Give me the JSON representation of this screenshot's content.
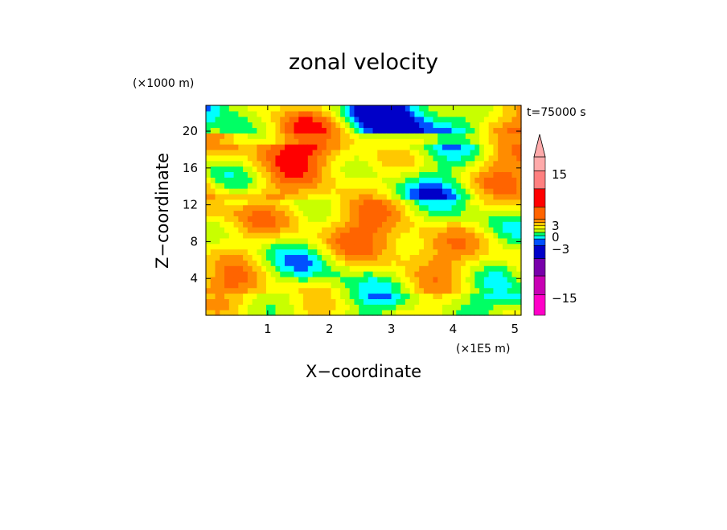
{
  "chart_data": {
    "type": "heatmap",
    "title": "zonal velocity",
    "xlabel": "X−coordinate",
    "ylabel": "Z−coordinate",
    "x_unit": "(×1E5 m)",
    "y_unit": "(×1000 m)",
    "time_label": "t=75000 s",
    "xlim": [
      0,
      5.1
    ],
    "ylim": [
      0,
      22.8
    ],
    "x_ticks": [
      "1",
      "2",
      "3",
      "4",
      "5"
    ],
    "x_tick_values": [
      1,
      2,
      3,
      4,
      5
    ],
    "y_ticks": [
      "4",
      "8",
      "12",
      "16",
      "20"
    ],
    "y_tick_values": [
      4,
      8,
      12,
      16,
      20
    ],
    "grid": false,
    "colorbar": {
      "placement": "right",
      "tick_labels": [
        "15",
        "3",
        "0",
        "−3",
        "−15"
      ],
      "tick_values": [
        15,
        3,
        0,
        -3,
        -15
      ],
      "levels": [
        {
          "color": "#ff00c8"
        },
        {
          "color": "#c800b4"
        },
        {
          "color": "#7800aa"
        },
        {
          "color": "#0000c8"
        },
        {
          "color": "#0050ff"
        },
        {
          "color": "#00ffff"
        },
        {
          "color": "#00ff64"
        },
        {
          "color": "#c8ff00"
        },
        {
          "color": "#ffff00"
        },
        {
          "color": "#ffc800"
        },
        {
          "color": "#ff8c00"
        },
        {
          "color": "#ff6400"
        },
        {
          "color": "#ff0000"
        },
        {
          "color": "#ff8080"
        },
        {
          "color": "#ffaaaa"
        }
      ]
    },
    "field": {
      "nx": 68,
      "nz": 38,
      "palette": [
        "#0000c8",
        "#0050ff",
        "#00ffff",
        "#00ff64",
        "#c8ff00",
        "#ffff00",
        "#ffc800",
        "#ff8c00",
        "#ff6400",
        "#ff0000"
      ]
    }
  }
}
